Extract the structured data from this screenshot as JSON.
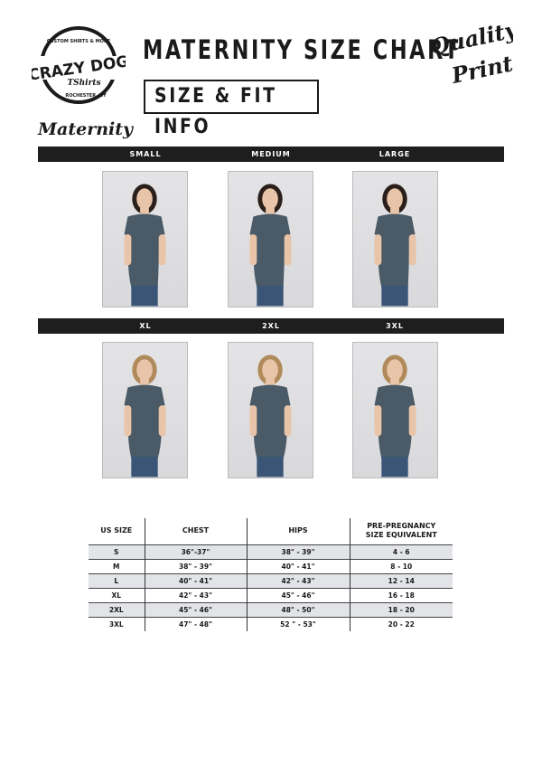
{
  "header": {
    "logo_text": "CRAZY DOG TShirts — Custom Shirts & More — Rochester, NY",
    "title": "MATERNITY SIZE CHART",
    "subtitle": "SIZE & FIT INFO",
    "badge_text": "Quality Prints"
  },
  "section": "Maternity",
  "rows": [
    {
      "labels": [
        "SMALL",
        "MEDIUM",
        "LARGE"
      ]
    },
    {
      "labels": [
        "XL",
        "2XL",
        "3XL"
      ]
    }
  ],
  "table": {
    "headers": [
      "US SIZE",
      "CHEST",
      "HIPS",
      "PRE-PREGNANCY SIZE EQUIVALENT"
    ],
    "rows": [
      [
        "S",
        "36\"-37\"",
        "38\" - 39\"",
        "4 - 6"
      ],
      [
        "M",
        "38\" - 39\"",
        "40\" - 41\"",
        "8 - 10"
      ],
      [
        "L",
        "40\" - 41\"",
        "42\" - 43\"",
        "12 - 14"
      ],
      [
        "XL",
        "42\" - 43\"",
        "45\" - 46\"",
        "16 - 18"
      ],
      [
        "2XL",
        "45\" - 46\"",
        "48\" - 50\"",
        "18 - 20"
      ],
      [
        "3XL",
        "47\" - 48\"",
        "52 \" - 53\"",
        "20 - 22"
      ]
    ]
  },
  "colors": {
    "bar": "#1e1e1e",
    "shirt": "#4a5a66",
    "row_shade": "#e2e4e8"
  }
}
